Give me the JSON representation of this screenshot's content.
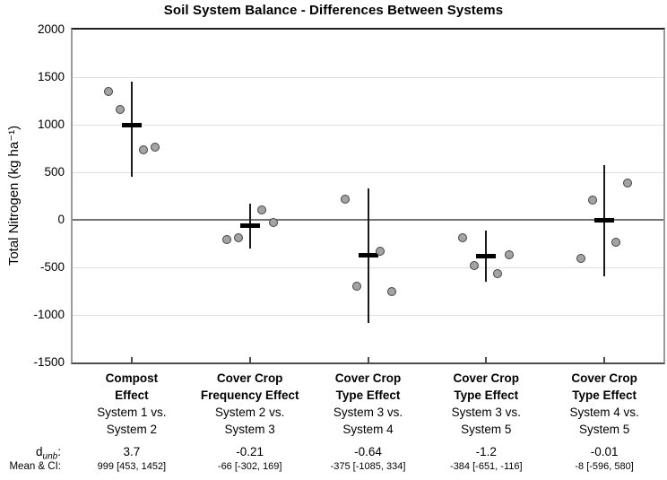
{
  "chart_data": {
    "type": "scatter",
    "title": "Soil System Balance - Differences Between Systems",
    "ylabel": "Total Nitrogen (kg ha⁻¹)",
    "ylim": [
      -1500,
      2000
    ],
    "yticks": [
      2000,
      1500,
      1000,
      500,
      0,
      -500,
      -1000,
      -1500
    ],
    "grid": "horizontal",
    "legend": "none",
    "point_offsets": [
      -26,
      -13,
      13,
      26
    ],
    "groups": [
      {
        "effect_lines": [
          "Compost",
          "Effect"
        ],
        "comparison_lines": [
          "System 1 vs.",
          "System 2"
        ],
        "d_unb": "3.7",
        "mean_ci_text": "999 [453, 1452]",
        "mean": 999,
        "ci_low": 453,
        "ci_high": 1452,
        "points": [
          1345,
          1160,
          740,
          765
        ]
      },
      {
        "effect_lines": [
          "Cover Crop",
          "Frequency Effect"
        ],
        "comparison_lines": [
          "System 2 vs.",
          "System 3"
        ],
        "d_unb": "-0.21",
        "mean_ci_text": "-66 [-302, 169]",
        "mean": -66,
        "ci_low": -302,
        "ci_high": 169,
        "points": [
          -210,
          -185,
          105,
          -30
        ]
      },
      {
        "effect_lines": [
          "Cover Crop",
          "Type Effect"
        ],
        "comparison_lines": [
          "System 3 vs.",
          "System 4"
        ],
        "d_unb": "-0.64",
        "mean_ci_text": "-375 [-1085, 334]",
        "mean": -375,
        "ci_low": -1085,
        "ci_high": 334,
        "points": [
          220,
          -700,
          -330,
          -750
        ]
      },
      {
        "effect_lines": [
          "Cover Crop",
          "Type Effect"
        ],
        "comparison_lines": [
          "System 3 vs.",
          "System 5"
        ],
        "d_unb": "-1.2",
        "mean_ci_text": "-384 [-651, -116]",
        "mean": -384,
        "ci_low": -651,
        "ci_high": -116,
        "points": [
          -190,
          -485,
          -570,
          -370
        ]
      },
      {
        "effect_lines": [
          "Cover Crop",
          "Type Effect"
        ],
        "comparison_lines": [
          "System 4 vs.",
          "System 5"
        ],
        "d_unb": "-0.01",
        "mean_ci_text": "-8 [-596, 580]",
        "mean": -8,
        "ci_low": -596,
        "ci_high": 580,
        "points": [
          -410,
          205,
          -235,
          385
        ]
      }
    ],
    "row_labels": {
      "d_base": "d",
      "d_sub": "unb",
      "d_colon": ":",
      "mean_ci_label": "Mean & CI:"
    },
    "colors": {
      "point_fill": "#a3a3a3",
      "point_stroke": "#424242",
      "ci_line": "#1a1a1a",
      "mean_bar": "#000000",
      "gridline": "#dedede",
      "zero_line": "#737373",
      "x_tick": "#4d4d4d"
    }
  }
}
